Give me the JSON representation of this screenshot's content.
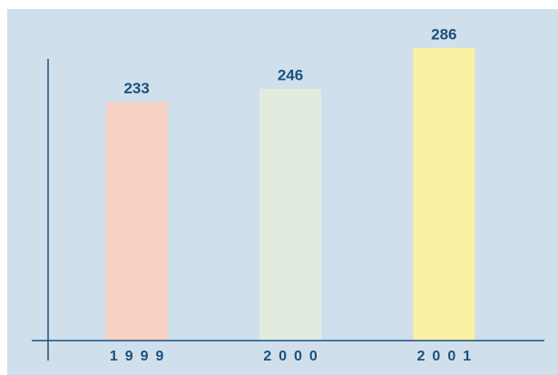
{
  "chart_data": {
    "type": "bar",
    "categories": [
      "1999",
      "2000",
      "2001"
    ],
    "values": [
      233,
      246,
      286
    ],
    "colors": [
      "#f8d0c4",
      "#e1ecdf",
      "#fcf0a4"
    ],
    "ylim": [
      0,
      300
    ]
  }
}
